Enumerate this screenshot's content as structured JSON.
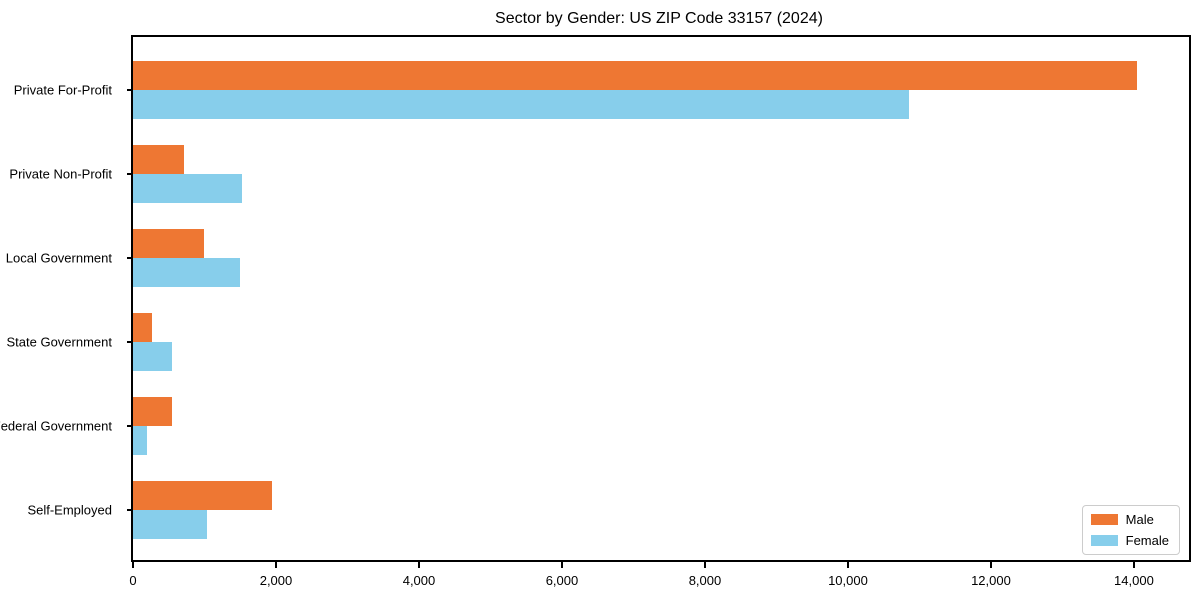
{
  "chart_data": {
    "type": "bar",
    "orientation": "horizontal",
    "title": "Sector by Gender: US ZIP Code 33157 (2024)",
    "xlabel": "",
    "ylabel": "",
    "categories": [
      "Private For-Profit",
      "Private Non-Profit",
      "Local Government",
      "State Government",
      "Federal Government",
      "Self-Employed"
    ],
    "series": [
      {
        "name": "Male",
        "color": "#EE7733",
        "values": [
          14040,
          720,
          1000,
          270,
          550,
          1940
        ]
      },
      {
        "name": "Female",
        "color": "#87CEEB",
        "values": [
          10860,
          1520,
          1490,
          540,
          200,
          1030
        ]
      }
    ],
    "xlim": [
      0,
      14770
    ],
    "xticks": [
      0,
      2000,
      4000,
      6000,
      8000,
      10000,
      12000,
      14000
    ],
    "xtick_labels": [
      "0",
      "2,000",
      "4,000",
      "6,000",
      "8,000",
      "10,000",
      "12,000",
      "14,000"
    ],
    "grid": false,
    "legend_position": "lower right"
  },
  "colors": {
    "male": "#EE7733",
    "female": "#87CEEB",
    "axis": "#000000",
    "legend_border": "#cccccc",
    "background": "#ffffff"
  }
}
